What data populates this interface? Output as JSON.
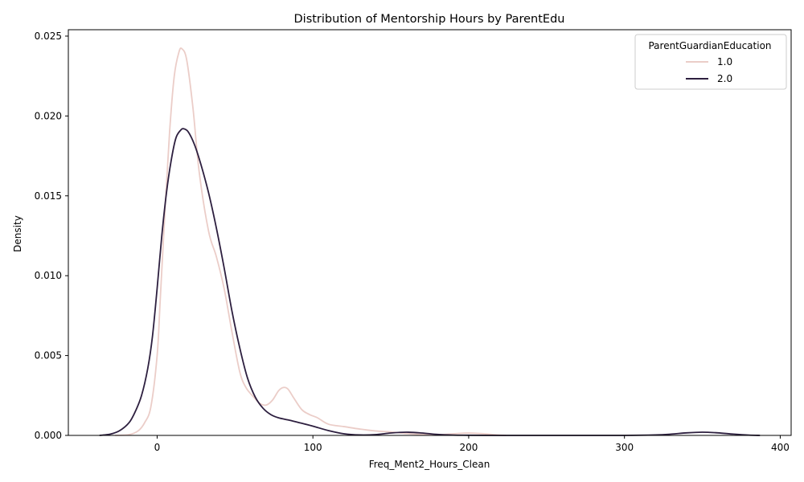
{
  "chart_data": {
    "type": "line",
    "title": "Distribution of Mentorship Hours by ParentEdu",
    "xlabel": "Freq_Ment2_Hours_Clean",
    "ylabel": "Density",
    "xlim": [
      -57,
      407
    ],
    "ylim": [
      0,
      0.0254
    ],
    "xticks": [
      0,
      100,
      200,
      300,
      400
    ],
    "yticks": [
      0.0,
      0.005,
      0.01,
      0.015,
      0.02,
      0.025
    ],
    "xtick_labels": [
      "0",
      "100",
      "200",
      "300",
      "400"
    ],
    "ytick_labels": [
      "0.000",
      "0.005",
      "0.010",
      "0.015",
      "0.020",
      "0.025"
    ],
    "grid": false,
    "legend": {
      "title": "ParentGuardianEducation",
      "placement": "top-right"
    },
    "series": [
      {
        "name": "1.0",
        "color": "#ebcdc8",
        "points": [
          [
            -27,
            0.0
          ],
          [
            -18,
            5e-05
          ],
          [
            -12,
            0.0003
          ],
          [
            -8,
            0.0008
          ],
          [
            -4,
            0.0018
          ],
          [
            0,
            0.005
          ],
          [
            2,
            0.0085
          ],
          [
            5,
            0.014
          ],
          [
            8,
            0.019
          ],
          [
            11,
            0.0225
          ],
          [
            14,
            0.024
          ],
          [
            16,
            0.0242
          ],
          [
            19,
            0.0235
          ],
          [
            23,
            0.0205
          ],
          [
            27,
            0.0165
          ],
          [
            33,
            0.0128
          ],
          [
            38,
            0.0112
          ],
          [
            43,
            0.0092
          ],
          [
            48,
            0.0065
          ],
          [
            53,
            0.004
          ],
          [
            57,
            0.003
          ],
          [
            62,
            0.0024
          ],
          [
            66,
            0.002
          ],
          [
            70,
            0.0019
          ],
          [
            74,
            0.0022
          ],
          [
            78,
            0.0028
          ],
          [
            81,
            0.003
          ],
          [
            84,
            0.0029
          ],
          [
            88,
            0.0023
          ],
          [
            93,
            0.0016
          ],
          [
            98,
            0.0013
          ],
          [
            103,
            0.0011
          ],
          [
            110,
            0.0007
          ],
          [
            120,
            0.00055
          ],
          [
            130,
            0.0004
          ],
          [
            140,
            0.00028
          ],
          [
            150,
            0.00022
          ],
          [
            160,
            0.00012
          ],
          [
            170,
            6e-05
          ],
          [
            180,
            4e-05
          ],
          [
            190,
            0.0001
          ],
          [
            200,
            0.00015
          ],
          [
            210,
            0.0001
          ],
          [
            218,
            3e-05
          ],
          [
            224,
            0.0
          ]
        ]
      },
      {
        "name": "2.0",
        "color": "#2d1f3f",
        "points": [
          [
            -37,
            0.0
          ],
          [
            -30,
            8e-05
          ],
          [
            -24,
            0.0003
          ],
          [
            -18,
            0.0008
          ],
          [
            -14,
            0.0015
          ],
          [
            -10,
            0.0025
          ],
          [
            -6,
            0.0042
          ],
          [
            -3,
            0.0062
          ],
          [
            0,
            0.0092
          ],
          [
            3,
            0.0125
          ],
          [
            6,
            0.0152
          ],
          [
            9,
            0.0172
          ],
          [
            12,
            0.0186
          ],
          [
            15,
            0.0191
          ],
          [
            17,
            0.0192
          ],
          [
            20,
            0.019
          ],
          [
            24,
            0.0182
          ],
          [
            28,
            0.017
          ],
          [
            33,
            0.0152
          ],
          [
            38,
            0.013
          ],
          [
            43,
            0.0105
          ],
          [
            48,
            0.0078
          ],
          [
            53,
            0.0055
          ],
          [
            58,
            0.0036
          ],
          [
            63,
            0.0024
          ],
          [
            68,
            0.0017
          ],
          [
            73,
            0.0013
          ],
          [
            78,
            0.0011
          ],
          [
            85,
            0.00095
          ],
          [
            92,
            0.00078
          ],
          [
            100,
            0.00058
          ],
          [
            110,
            0.0003
          ],
          [
            120,
            0.0001
          ],
          [
            130,
            3e-05
          ],
          [
            140,
            5e-05
          ],
          [
            150,
            0.00015
          ],
          [
            160,
            0.0002
          ],
          [
            170,
            0.00015
          ],
          [
            180,
            6e-05
          ],
          [
            190,
            2e-05
          ],
          [
            200,
            1e-05
          ],
          [
            220,
            0.0
          ],
          [
            260,
            0.0
          ],
          [
            300,
            0.0
          ],
          [
            320,
            3e-05
          ],
          [
            330,
            8e-05
          ],
          [
            340,
            0.00016
          ],
          [
            350,
            0.0002
          ],
          [
            360,
            0.00016
          ],
          [
            370,
            8e-05
          ],
          [
            380,
            2e-05
          ],
          [
            387,
            0.0
          ]
        ]
      }
    ]
  }
}
